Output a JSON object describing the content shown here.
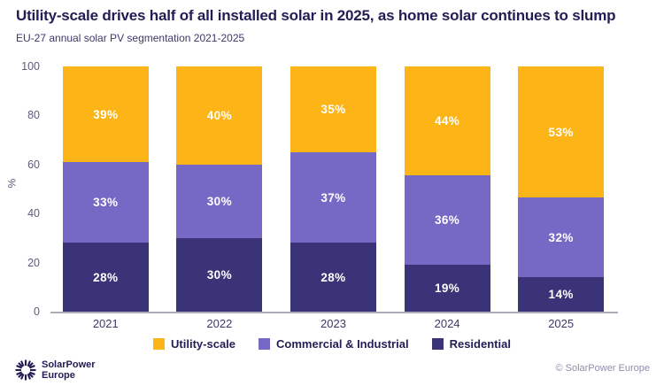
{
  "header": {
    "title": "Utility-scale drives half of all installed solar in 2025, as home solar continues to slump",
    "subtitle": "EU-27 annual solar PV segmentation 2021-2025"
  },
  "chart_data": {
    "type": "bar",
    "stacked": true,
    "title": "Utility-scale drives half of all installed solar in 2025, as home solar continues to slump",
    "subtitle": "EU-27 annual solar PV segmentation 2021-2025",
    "categories": [
      "2021",
      "2022",
      "2023",
      "2024",
      "2025"
    ],
    "series": [
      {
        "name": "Utility-scale",
        "color": "#fcb417",
        "values": [
          39,
          40,
          35,
          44,
          53
        ]
      },
      {
        "name": "Commercial & Industrial",
        "color": "#7669c6",
        "values": [
          33,
          30,
          37,
          36,
          32
        ]
      },
      {
        "name": "Residential",
        "color": "#3b3377",
        "values": [
          28,
          30,
          28,
          19,
          14
        ]
      }
    ],
    "value_suffix": "%",
    "xlabel": "",
    "ylabel": "%",
    "ylim": [
      0,
      100
    ],
    "yticks": [
      0,
      20,
      40,
      60,
      80,
      100
    ],
    "grid": false,
    "legend_position": "bottom"
  },
  "colors": {
    "title_text": "#221d54",
    "subtitle_text": "#3d3868",
    "axis_tick_text": "#5e5b7d",
    "category_text": "#3d3868",
    "baseline": "#adabb5",
    "value_label_text": "#ffffff",
    "copyright_text": "#8f8da9"
  },
  "footer": {
    "logo_icon": "sunburst-icon",
    "logo_line1": "SolarPower",
    "logo_line2": "Europe",
    "copyright": "© SolarPower Europe"
  }
}
